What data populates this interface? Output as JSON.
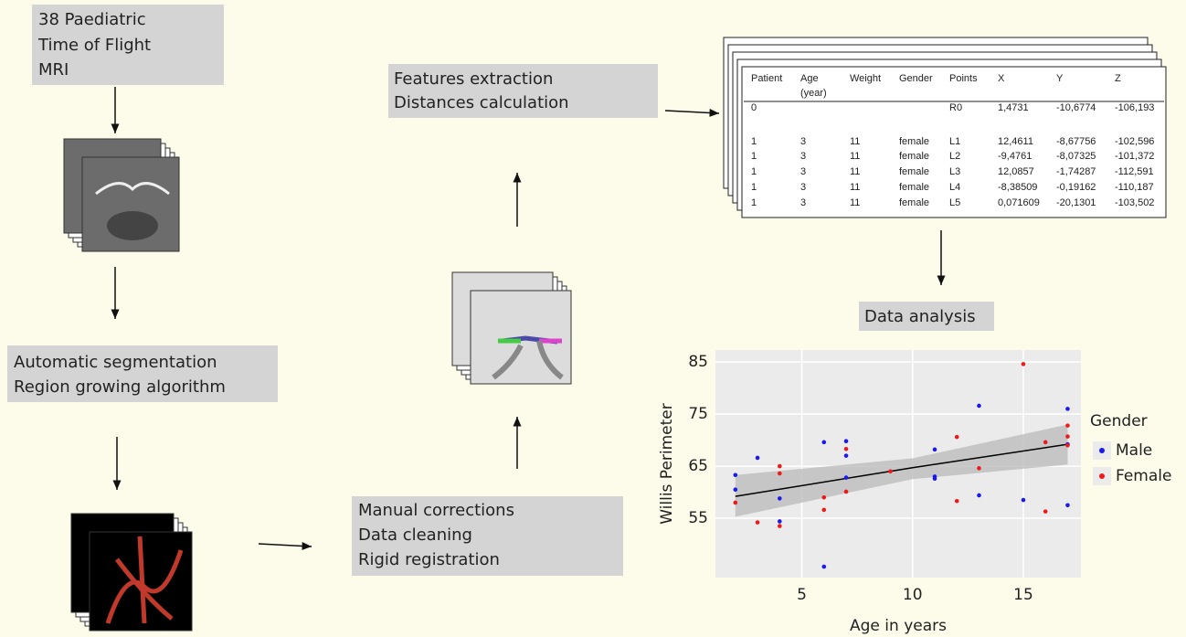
{
  "steps": [
    {
      "lines": [
        "38 Paediatric",
        "Time of Flight",
        "MRI"
      ]
    },
    {
      "lines": [
        "Automatic segmentation",
        "Region growing algorithm"
      ]
    },
    {
      "lines": [
        "Manual corrections",
        "Data cleaning",
        "Rigid registration"
      ]
    },
    {
      "lines": [
        "Features extraction",
        "Distances calculation"
      ]
    },
    {
      "lines": [
        "Data analysis"
      ]
    }
  ],
  "table": {
    "header": [
      "Patient",
      "Age",
      "Weight",
      "Gender",
      "Points",
      "X",
      "Y",
      "Z"
    ],
    "age_unit": "(year)",
    "rows": [
      {
        "patient": "0",
        "points": "R0",
        "x": "1,4731",
        "y": "-10,6774",
        "z": "-106,193"
      },
      {
        "patient": "1",
        "age": "3",
        "weight": "11",
        "gender": "female",
        "points": "L1",
        "x": "12,4611",
        "y": "-8,67756",
        "z": "-102,596"
      },
      {
        "patient": "1",
        "age": "3",
        "weight": "11",
        "gender": "female",
        "points": "L2",
        "x": "-9,4761",
        "y": "-8,07325",
        "z": "-101,372"
      },
      {
        "patient": "1",
        "age": "3",
        "weight": "11",
        "gender": "female",
        "points": "L3",
        "x": "12,0857",
        "y": "-1,74287",
        "z": "-112,591"
      },
      {
        "patient": "1",
        "age": "3",
        "weight": "11",
        "gender": "female",
        "points": "L4",
        "x": "-8,38509",
        "y": "-0,19162",
        "z": "-110,187"
      },
      {
        "patient": "1",
        "age": "3",
        "weight": "11",
        "gender": "female",
        "points": "L5",
        "x": "0,071609",
        "y": "-20,1301",
        "z": "-103,502"
      }
    ]
  },
  "chart_data": {
    "type": "scatter",
    "x_label": "Age in years",
    "y_label": "Willis Perimeter",
    "legend_title": "Gender",
    "legend_position": "right",
    "xlim": [
      1.1,
      17.6
    ],
    "ylim": [
      43.6,
      87.3
    ],
    "xticks": [
      5,
      10,
      15
    ],
    "yticks": [
      55,
      65,
      75,
      85
    ],
    "grid": true,
    "series": [
      {
        "name": "Male",
        "color": "#1a1aee",
        "x": [
          2,
          2,
          3,
          4,
          4,
          6,
          6,
          7,
          7,
          7,
          11,
          11,
          11,
          13,
          13,
          15,
          17,
          17,
          17
        ],
        "values": [
          63.3,
          60.5,
          66.6,
          58.8,
          54.4,
          69.6,
          45.7,
          69.8,
          67,
          62.8,
          68.2,
          63,
          62.6,
          76.6,
          59.4,
          58.5,
          76,
          57.5,
          69.2
        ]
      },
      {
        "name": "Female",
        "color": "#ee1a1a",
        "x": [
          2,
          3,
          4,
          4,
          4,
          6,
          6,
          7,
          7,
          9,
          12,
          12,
          13,
          15,
          16,
          16,
          17,
          17,
          17
        ],
        "values": [
          58,
          54.2,
          65,
          63.6,
          53.5,
          59,
          56.6,
          68.3,
          60.1,
          64,
          70.6,
          58.3,
          64.6,
          84.6,
          69.6,
          56.3,
          72.8,
          70.7,
          69
        ]
      }
    ],
    "trend": {
      "x": [
        2,
        10,
        17
      ],
      "values": [
        59.2,
        64.7,
        69.2
      ],
      "lower": [
        55.3,
        62.5,
        65.3
      ],
      "upper": [
        63.3,
        66.5,
        73
      ]
    }
  }
}
